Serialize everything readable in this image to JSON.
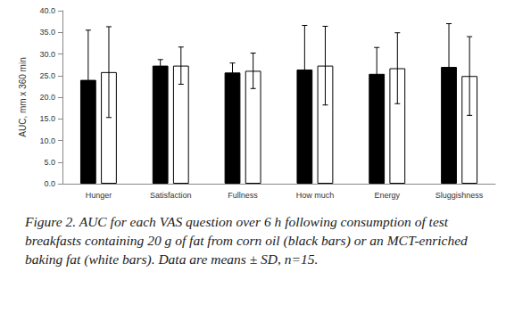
{
  "chart_data": {
    "type": "bar",
    "caption": "Figure 2. AUC for each VAS question over 6 h following consumption of test breakfasts containing 20 g of fat from corn oil (black bars) or an MCT-enriched baking fat (white bars). Data are means ± SD, n=15.",
    "y_label": "AUC, mm x 360 min",
    "categories": [
      "Hunger",
      "Satisfaction",
      "Fullness",
      "How much",
      "Energy",
      "Sluggishness"
    ],
    "series": [
      {
        "color": "#000000",
        "values": [
          24.0,
          27.3,
          25.7,
          26.4,
          25.4,
          27.0
        ],
        "errors": [
          11.5,
          1.4,
          2.2,
          10.2,
          6.1,
          10.0
        ]
      },
      {
        "color": "#ffffff",
        "values": [
          25.8,
          27.3,
          26.1,
          27.3,
          26.7,
          24.9
        ],
        "errors": [
          10.5,
          4.3,
          4.1,
          9.1,
          8.2,
          9.1
        ]
      }
    ],
    "ylim": [
      0,
      40
    ],
    "yticks": [
      {
        "value": 0,
        "label": "0.0"
      },
      {
        "value": 5,
        "label": "5.0"
      },
      {
        "value": 10,
        "label": "10.0"
      },
      {
        "value": 15,
        "label": "15.0"
      },
      {
        "value": 20,
        "label": "20.0"
      },
      {
        "value": 25,
        "label": "25.0"
      },
      {
        "value": 30,
        "label": "30.0"
      },
      {
        "value": 35,
        "label": "35.0"
      },
      {
        "value": 40,
        "label": "40.0"
      }
    ],
    "grid": false
  }
}
